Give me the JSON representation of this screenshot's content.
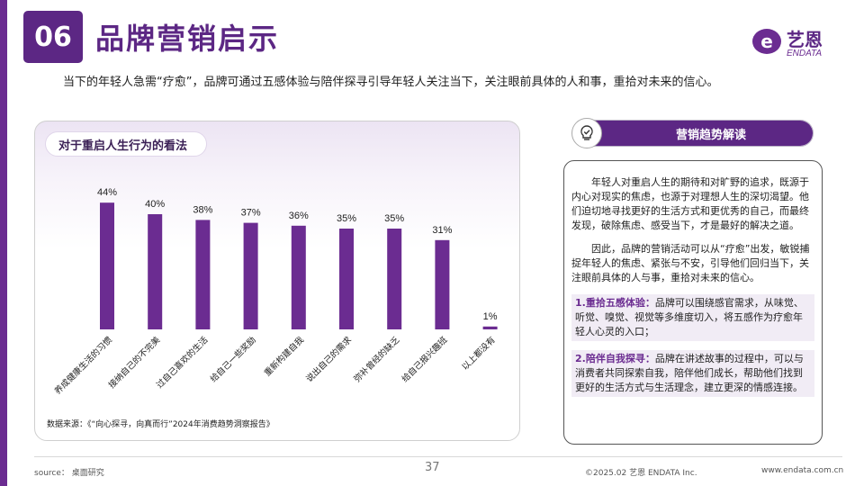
{
  "header": {
    "section_number": "06",
    "title": "品牌营销启示",
    "logo_cn": "艺恩",
    "logo_en": "ENDATA",
    "logo_mark": "e",
    "subtitle": "当下的年轻人急需“疗愈”，品牌可通过五感体验与陪伴探寻引导年轻人关注当下，关注眼前具体的人和事，重拾对未来的信心。"
  },
  "chart_panel": {
    "title": "对于重启人生行为的看法",
    "source_note": "数据来源：《“向心探寻，向真而行”2024年消费趋势洞察报告》"
  },
  "chart_data": {
    "type": "bar",
    "title": "对于重启人生行为的看法",
    "categories": [
      "养成健康生活的习惯",
      "接纳自己的不完美",
      "过自己喜欢的生活",
      "给自己一些奖励",
      "重新构建自我",
      "说出自己的需求",
      "弥补曾经的缺乏",
      "给自己报兴趣班",
      "以上都没有"
    ],
    "values": [
      44,
      40,
      38,
      37,
      36,
      35,
      35,
      31,
      1
    ],
    "value_labels": [
      "44%",
      "40%",
      "38%",
      "37%",
      "36%",
      "35%",
      "35%",
      "31%",
      "1%"
    ],
    "unit": "%",
    "ylim": [
      0,
      50
    ],
    "grid": false,
    "bar_color": "#6b2c91"
  },
  "trend_panel": {
    "header_label": "营销趋势解读",
    "icon": "lightbulb-check-icon",
    "paragraph1": "年轻人对重启人生的期待和对旷野的追求，既源于内心对现实的焦虑，也源于对理想人生的深切渴望。他们迫切地寻找更好的生活方式和更优秀的自己，而最终发现，破除焦虑、感受当下，才是最好的解决之道。",
    "paragraph2": "因此，品牌的营销活动可以从“疗愈”出发，敏锐捕捉年轻人的焦虑、紧张与不安，引导他们回归当下，关注眼前具体的人与事，重拾对未来的信心。",
    "points": [
      {
        "label": "1.重拾五感体验：",
        "text": "品牌可以围绕感官需求，从味觉、听觉、嗅觉、视觉等多维度切入，将五感作为疗愈年轻人心灵的入口；"
      },
      {
        "label": "2.陪伴自我探寻：",
        "text": "品牌在讲述故事的过程中，可以与消费者共同探索自我，陪伴他们成长，帮助他们找到更好的生活方式与生活理念，建立更深的情感连接。"
      }
    ]
  },
  "footer": {
    "source": "source： 桌面研究",
    "page_number": "37",
    "copyright": "©2025.02 艺恩 ENDATA Inc.",
    "website": "www.endata.com.cn"
  },
  "colors": {
    "brand_purple": "#5c2784",
    "bar_purple": "#6b2c91"
  }
}
